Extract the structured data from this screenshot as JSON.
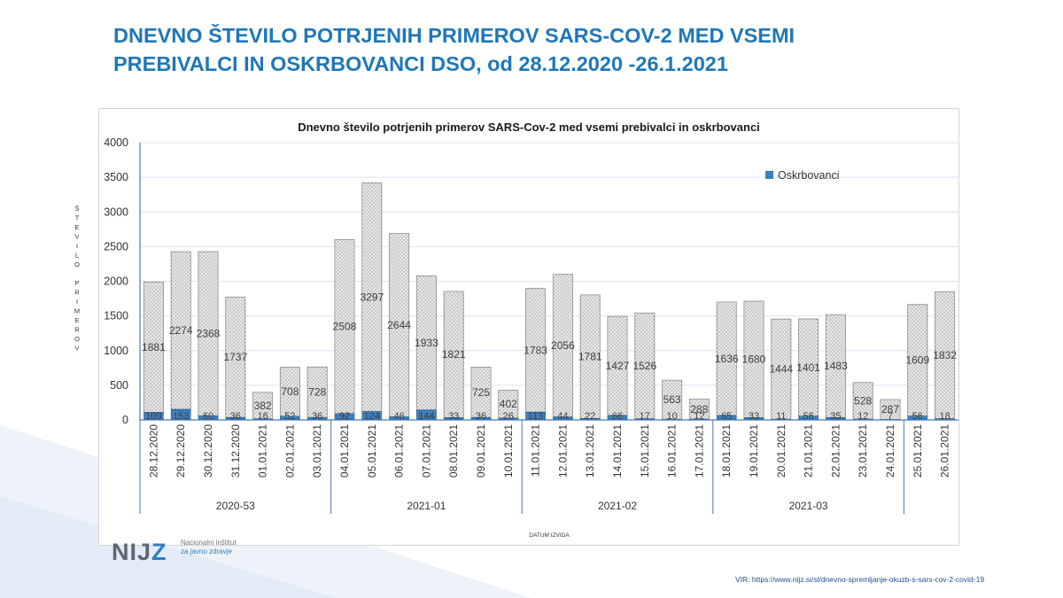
{
  "slide": {
    "title_line1": "DNEVNO ŠTEVILO POTRJENIH PRIMEROV SARS-COV-2 MED VSEMI",
    "title_line2": "PREBIVALCI IN OSKRBOVANCI DSO, od 28.12.2020 -26.1.2021",
    "source": "VIR: https://www.nijz.si/sl/dnevno-spremljanje-okuzb-s-sars-cov-2-covid-19"
  },
  "logo": {
    "mark_a": "NIJ",
    "mark_b": "Z",
    "name_line1": "Nacionalni inštitut",
    "name_line2": "za javno zdravje"
  },
  "colors": {
    "title": "#1f77b8",
    "oskrbovanci": "#2e75b6",
    "others_fill": "#d9d9d9",
    "gridline": "#d9e6f2",
    "axis": "#4a78b5"
  },
  "chart_data": {
    "type": "bar",
    "stacked": true,
    "title": "Dnevno število potrjenih primerov SARS-Cov-2 med vsemi prebivalci in oskrbovanci",
    "xlabel": "DATUM IZVIDA",
    "ylabel": "ŠTEVILO PRIMEROV",
    "ylim": [
      0,
      4000
    ],
    "yticks": [
      0,
      500,
      1000,
      1500,
      2000,
      2500,
      3000,
      3500,
      4000
    ],
    "grid": true,
    "legend_position": "top-right",
    "categories": [
      "28.12.2020",
      "29.12.2020",
      "30.12.2020",
      "31.12.2020",
      "01.01.2021",
      "02.01.2021",
      "03.01.2021",
      "04.01.2021",
      "05.01.2021",
      "06.01.2021",
      "07.01.2021",
      "08.01.2021",
      "09.01.2021",
      "10.01.2021",
      "11.01.2021",
      "12.01.2021",
      "13.01.2021",
      "14.01.2021",
      "15.01.2021",
      "16.01.2021",
      "17.01.2021",
      "18.01.2021",
      "19.01.2021",
      "20.01.2021",
      "21.01.2021",
      "22.01.2021",
      "23.01.2021",
      "24.01.2021",
      "25.01.2021",
      "26.01.2021"
    ],
    "groups": [
      {
        "label": "2020-53",
        "start": 0,
        "end": 6
      },
      {
        "label": "2021-01",
        "start": 7,
        "end": 13
      },
      {
        "label": "2021-02",
        "start": 14,
        "end": 20
      },
      {
        "label": "2021-03",
        "start": 21,
        "end": 27
      },
      {
        "label": "",
        "start": 28,
        "end": 29
      }
    ],
    "series": [
      {
        "name": "Oskrbovanci",
        "values": [
          109,
          153,
          60,
          36,
          16,
          52,
          36,
          92,
          124,
          46,
          144,
          33,
          36,
          26,
          113,
          44,
          22,
          66,
          17,
          10,
          12,
          65,
          33,
          11,
          56,
          35,
          12,
          7,
          56,
          18
        ]
      },
      {
        "name": "",
        "values": [
          1881,
          2274,
          2368,
          1737,
          382,
          708,
          728,
          2508,
          3297,
          2644,
          1933,
          1821,
          725,
          402,
          1783,
          2056,
          1781,
          1427,
          1526,
          563,
          288,
          1636,
          1680,
          1444,
          1401,
          1483,
          528,
          287,
          1609,
          1832
        ]
      }
    ]
  }
}
